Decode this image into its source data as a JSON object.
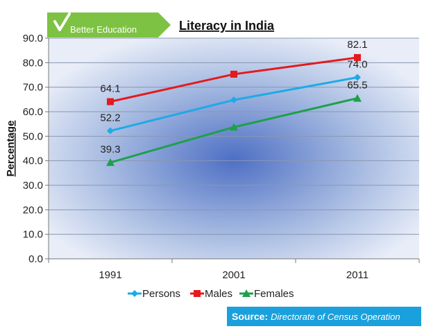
{
  "badge": {
    "text": "Better Education"
  },
  "source": {
    "label": "Source:",
    "value": "Directorate of Census Operation"
  },
  "colors": {
    "persons": "#1eaae6",
    "males": "#e41a1c",
    "females": "#1ea04b",
    "badge": "#7dc242",
    "source_bg": "#1aa0dc"
  },
  "chart_data": {
    "type": "line",
    "title": "Literacy in India",
    "xlabel": "",
    "ylabel": "Percentage",
    "categories": [
      "1991",
      "2001",
      "2011"
    ],
    "ylim": [
      0,
      90
    ],
    "yticks": [
      "0.0",
      "10.0",
      "20.0",
      "30.0",
      "40.0",
      "50.0",
      "60.0",
      "70.0",
      "80.0",
      "90.0"
    ],
    "grid": true,
    "legend_position": "bottom",
    "series": [
      {
        "name": "Persons",
        "values": [
          52.2,
          64.8,
          74.0
        ],
        "labels": [
          "52.2",
          "",
          "74.0"
        ],
        "marker": "diamond",
        "color": "#1eaae6"
      },
      {
        "name": "Males",
        "values": [
          64.1,
          75.3,
          82.1
        ],
        "labels": [
          "64.1",
          "",
          "82.1"
        ],
        "marker": "square",
        "color": "#e41a1c"
      },
      {
        "name": "Females",
        "values": [
          39.3,
          53.7,
          65.5
        ],
        "labels": [
          "39.3",
          "",
          "65.5"
        ],
        "marker": "triangle",
        "color": "#1ea04b"
      }
    ]
  }
}
